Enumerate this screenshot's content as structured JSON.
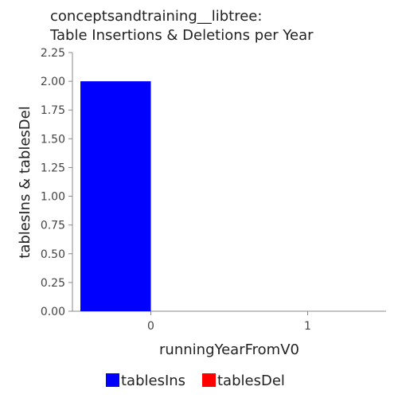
{
  "chart_data": {
    "type": "bar",
    "title": [
      "conceptsandtraining__libtree:",
      "Table Insertions & Deletions per Year"
    ],
    "xlabel": "runningYearFromV0",
    "ylabel": "tablesIns & tablesDel",
    "categories": [
      "0",
      "1"
    ],
    "series": [
      {
        "name": "tablesIns",
        "color": "#0000ff",
        "values": [
          2,
          0
        ]
      },
      {
        "name": "tablesDel",
        "color": "#ff0000",
        "values": [
          0,
          0
        ]
      }
    ],
    "ylim": [
      0,
      2.25
    ],
    "yticks": [
      "0.00",
      "0.25",
      "0.50",
      "0.75",
      "1.00",
      "1.25",
      "1.50",
      "1.75",
      "2.00",
      "2.25"
    ],
    "grid": false,
    "legend_position": "bottom"
  }
}
